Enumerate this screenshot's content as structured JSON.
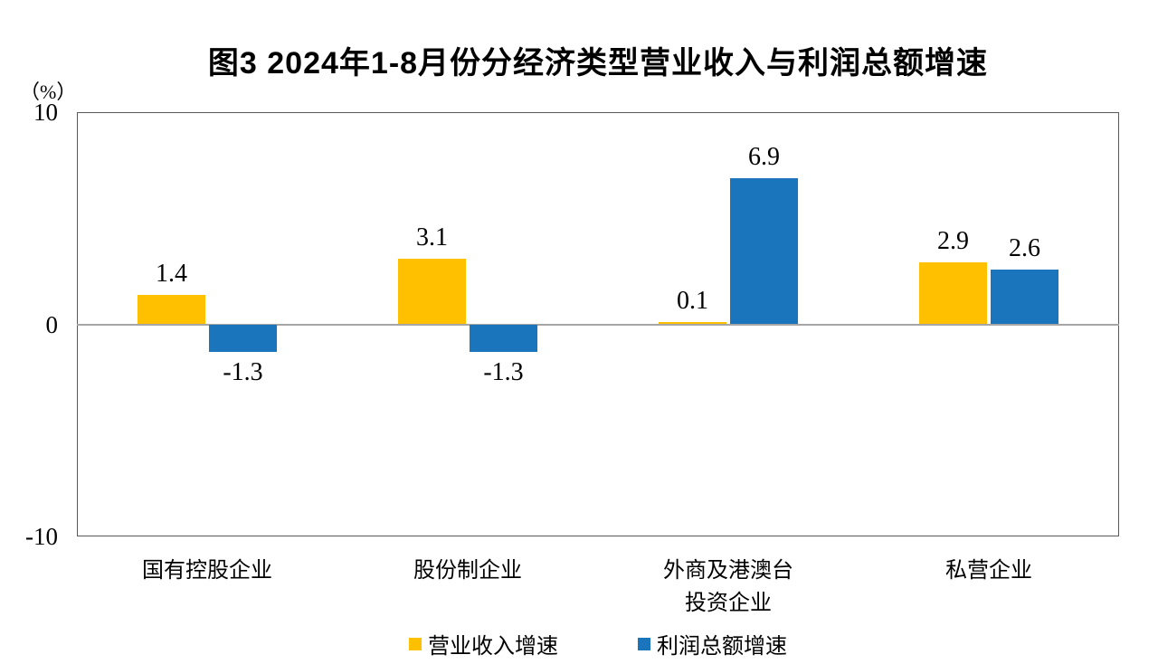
{
  "chart_data": {
    "type": "bar",
    "title": "图3  2024年1-8月份分经济类型营业收入与利润总额增速",
    "categories": [
      "国有控股企业",
      "股份制企业",
      "外商及港澳台\n投资企业",
      "私营企业"
    ],
    "series": [
      {
        "name": "营业收入增速",
        "color": "#FFC000",
        "values": [
          1.4,
          3.1,
          0.1,
          2.9
        ]
      },
      {
        "name": "利润总额增速",
        "color": "#1B75BC",
        "values": [
          -1.3,
          -1.3,
          6.9,
          2.6
        ]
      }
    ],
    "ylabel": "（%）",
    "ylim": [
      -10,
      10
    ],
    "yticks": [
      10,
      0,
      -10
    ],
    "grid": false,
    "legend_position": "bottom",
    "zero_line_color": "#A6A6A6",
    "axis_border_color": "#595959"
  }
}
